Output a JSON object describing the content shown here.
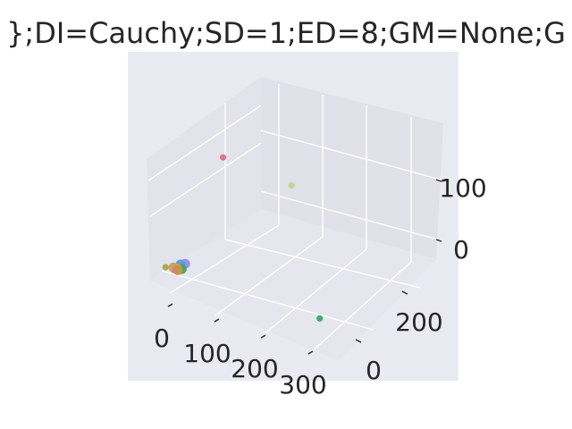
{
  "chart_data": {
    "type": "scatter",
    "projection": "3d",
    "title": "};DI=Cauchy;SD=1;ED=8;GM=None;G",
    "xlabel": "",
    "ylabel": "",
    "zlabel": "",
    "x_ticks": [
      "0",
      "100",
      "200",
      "300"
    ],
    "y_ticks": [
      "0",
      "200"
    ],
    "z_ticks": [
      "0",
      "100"
    ],
    "grid": true,
    "background_color": "#eaeaf2",
    "points": [
      {
        "x": 5,
        "y": 140,
        "z": 150,
        "color": "#dd6f86",
        "size": "small"
      },
      {
        "x": 60,
        "y": 260,
        "z": 60,
        "color": "#c8cf92",
        "size": "small"
      },
      {
        "x": 320,
        "y": 0,
        "z": 5,
        "color": "#3aa96a",
        "size": "small"
      },
      {
        "x": -15,
        "y": 5,
        "z": 0,
        "color": "#a9a84a",
        "size": "small"
      },
      {
        "x": 8,
        "y": 30,
        "z": 2,
        "color": "#8f8ee8",
        "size": "large"
      },
      {
        "x": 2,
        "y": 25,
        "z": 1,
        "color": "#5b9bd5",
        "size": "large"
      },
      {
        "x": 12,
        "y": 15,
        "z": 0,
        "color": "#3aa96a",
        "size": "large"
      },
      {
        "x": 5,
        "y": 12,
        "z": 0,
        "color": "#d9a24a",
        "size": "large"
      },
      {
        "x": -2,
        "y": 10,
        "z": 1,
        "color": "#c8a060",
        "size": "large"
      },
      {
        "x": 3,
        "y": 5,
        "z": 0,
        "color": "#d988a8",
        "size": "small"
      },
      {
        "x": 9,
        "y": 8,
        "z": 0,
        "color": "#c9914a",
        "size": "large"
      }
    ]
  }
}
